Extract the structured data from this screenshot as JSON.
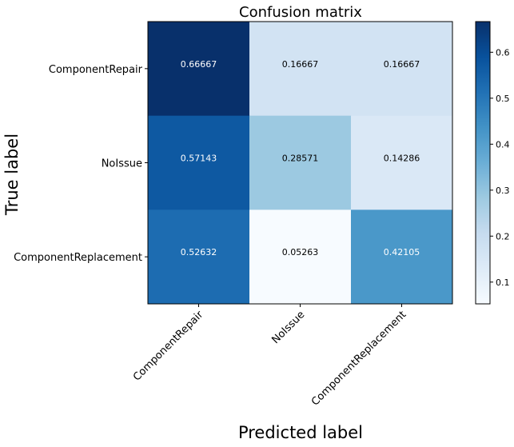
{
  "chart_data": {
    "type": "heatmap",
    "title": "Confusion matrix",
    "xlabel": "Predicted label",
    "ylabel": "True label",
    "x_categories": [
      "ComponentRepair",
      "NoIssue",
      "ComponentReplacement"
    ],
    "y_categories": [
      "ComponentRepair",
      "NoIssue",
      "ComponentReplacement"
    ],
    "values": [
      [
        0.66667,
        0.16667,
        0.16667
      ],
      [
        0.57143,
        0.28571,
        0.14286
      ],
      [
        0.52632,
        0.05263,
        0.42105
      ]
    ],
    "cell_labels": [
      [
        "0.66667",
        "0.16667",
        "0.16667"
      ],
      [
        "0.57143",
        "0.28571",
        "0.14286"
      ],
      [
        "0.52632",
        "0.05263",
        "0.42105"
      ]
    ],
    "colormap": "Blues",
    "colorbar": {
      "min": 0.05263,
      "max": 0.66667,
      "ticks": [
        0.1,
        0.2,
        0.3,
        0.4,
        0.5,
        0.6
      ],
      "tick_labels": [
        "0.1",
        "0.2",
        "0.3",
        "0.4",
        "0.5",
        "0.6"
      ]
    },
    "colors": {
      "text_dark": "#000000",
      "text_light": "#ffffff"
    }
  }
}
